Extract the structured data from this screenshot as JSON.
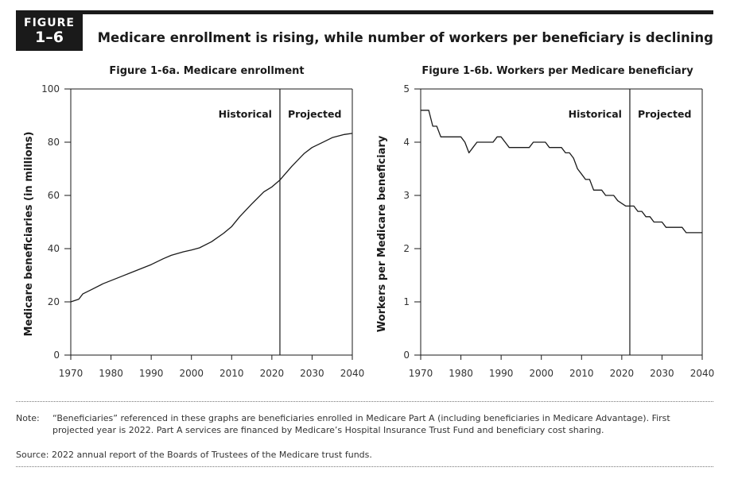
{
  "figure": {
    "label": "FIGURE",
    "number": "1–6",
    "title": "Medicare enrollment is rising, while number of workers per beneficiary is declining"
  },
  "colors": {
    "ink": "#1a1a1a",
    "rule": "#777777"
  },
  "chart_data": [
    {
      "type": "line",
      "title": "Figure 1-6a. Medicare enrollment",
      "xlabel": "",
      "ylabel": "Medicare beneficiaries (in millions)",
      "xlim": [
        1970,
        2040
      ],
      "ylim": [
        0,
        100
      ],
      "xticks": [
        1970,
        1980,
        1990,
        2000,
        2010,
        2020,
        2030,
        2040
      ],
      "yticks": [
        0,
        20,
        40,
        60,
        80,
        100
      ],
      "grid": false,
      "divider_year": 2022,
      "region_labels": [
        "Historical",
        "Projected"
      ],
      "series": [
        {
          "x": [
            1970,
            1972,
            1973,
            1975,
            1978,
            1980,
            1983,
            1985,
            1988,
            1990,
            1993,
            1995,
            1998,
            2000,
            2002,
            2005,
            2008,
            2010,
            2012,
            2015,
            2018,
            2020,
            2022,
            2025,
            2028,
            2030,
            2033,
            2035,
            2038,
            2040
          ],
          "y": [
            20,
            21,
            23,
            24.5,
            26.8,
            28,
            29.8,
            31,
            32.8,
            34,
            36.2,
            37.5,
            38.8,
            39.5,
            40.3,
            42.6,
            45.8,
            48.3,
            52,
            56.8,
            61.3,
            63.2,
            65.8,
            71,
            75.7,
            78,
            80.2,
            81.7,
            82.9,
            83.3
          ]
        }
      ]
    },
    {
      "type": "line",
      "title": "Figure 1-6b. Workers per Medicare beneficiary",
      "xlabel": "",
      "ylabel": "Workers per Medicare beneficiary",
      "xlim": [
        1970,
        2040
      ],
      "ylim": [
        0,
        5
      ],
      "xticks": [
        1970,
        1980,
        1990,
        2000,
        2010,
        2020,
        2030,
        2040
      ],
      "yticks": [
        0,
        1,
        2,
        3,
        4,
        5
      ],
      "grid": false,
      "divider_year": 2022,
      "region_labels": [
        "Historical",
        "Projected"
      ],
      "series": [
        {
          "x": [
            1970,
            1972,
            1973,
            1974,
            1975,
            1980,
            1981,
            1982,
            1983,
            1984,
            1985,
            1988,
            1989,
            1990,
            1991,
            1992,
            1997,
            1998,
            2001,
            2002,
            2005,
            2006,
            2007,
            2008,
            2009,
            2010,
            2011,
            2012,
            2013,
            2015,
            2016,
            2018,
            2019,
            2021,
            2022,
            2023,
            2024,
            2025,
            2026,
            2027,
            2028,
            2030,
            2031,
            2035,
            2036,
            2040
          ],
          "y": [
            4.6,
            4.6,
            4.3,
            4.3,
            4.1,
            4.1,
            4.0,
            3.8,
            3.9,
            4.0,
            4.0,
            4.0,
            4.1,
            4.1,
            4.0,
            3.9,
            3.9,
            4.0,
            4.0,
            3.9,
            3.9,
            3.8,
            3.8,
            3.7,
            3.5,
            3.4,
            3.3,
            3.3,
            3.1,
            3.1,
            3.0,
            3.0,
            2.9,
            2.8,
            2.8,
            2.8,
            2.7,
            2.7,
            2.6,
            2.6,
            2.5,
            2.5,
            2.4,
            2.4,
            2.3,
            2.3
          ]
        }
      ]
    }
  ],
  "note": {
    "label": "Note:",
    "text": "“Beneficiaries” referenced in these graphs are beneficiaries enrolled in Medicare Part A (including beneficiaries in Medicare Advantage). First projected year is 2022. Part A services are financed by Medicare’s Hospital Insurance Trust Fund and beneficiary cost sharing."
  },
  "source": "Source: 2022 annual report of the Boards of Trustees of the Medicare trust funds."
}
